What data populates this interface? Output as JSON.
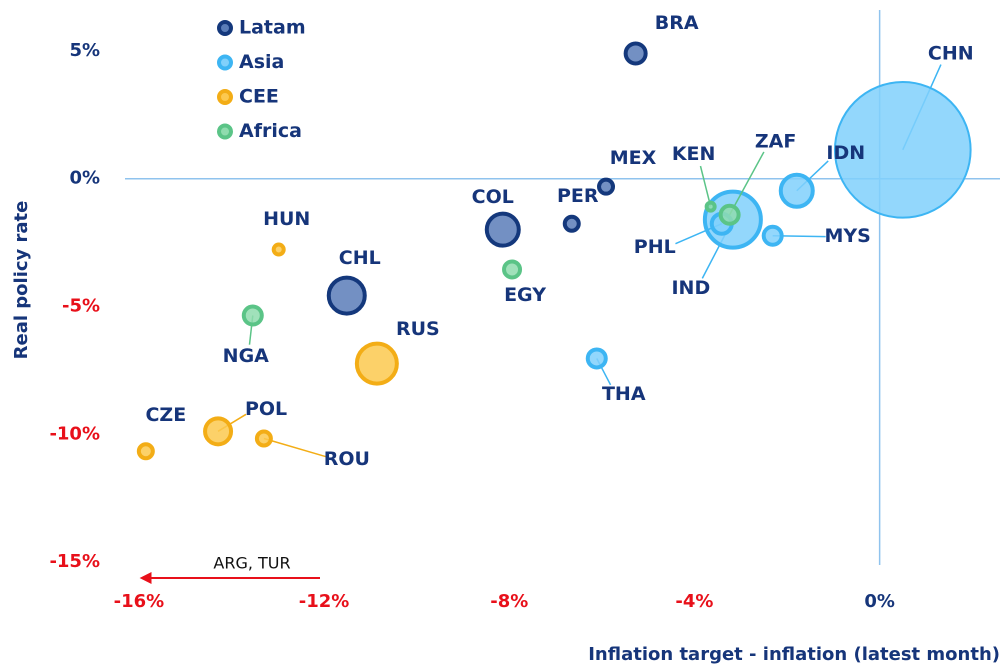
{
  "chart_data": {
    "type": "scatter",
    "xlabel": "Inflation target - inflation (latest month)",
    "ylabel": "Real policy rate",
    "xlim": [
      -16.3,
      2.6
    ],
    "ylim": [
      -15.5,
      6.6
    ],
    "xticks": [
      {
        "value": -16,
        "label": "-16%"
      },
      {
        "value": -12,
        "label": "-12%"
      },
      {
        "value": -8,
        "label": "-8%"
      },
      {
        "value": -4,
        "label": "-4%"
      },
      {
        "value": 0,
        "label": "0%"
      }
    ],
    "yticks": [
      {
        "value": 5,
        "label": "5%"
      },
      {
        "value": 0,
        "label": "0%"
      },
      {
        "value": -5,
        "label": "-5%"
      },
      {
        "value": -10,
        "label": "-10%"
      },
      {
        "value": -15,
        "label": "-15%"
      }
    ],
    "legend": "upper left",
    "annotation": {
      "text": "ARG, TUR",
      "color": "#e8101a"
    },
    "series": [
      {
        "name": "Latam",
        "color": "#14387c",
        "fill": "#5a7db8",
        "labels": [
          "BRA",
          "MEX",
          "PER",
          "COL",
          "CHL"
        ],
        "x": [
          -5.27,
          -5.91,
          -6.65,
          -8.14,
          -11.51
        ],
        "values": [
          4.9,
          -0.31,
          -1.76,
          -1.99,
          -4.57
        ],
        "sizes": [
          100,
          49,
          49,
          256,
          324
        ]
      },
      {
        "name": "Asia",
        "color": "#3db5f3",
        "fill": "#80d0fb",
        "labels": [
          "CHN",
          "IDN",
          "IND",
          "PHL",
          "MYS",
          "THA"
        ],
        "x": [
          0.5,
          -1.79,
          -3.17,
          -3.41,
          -2.31,
          -6.11
        ],
        "values": [
          1.13,
          -0.47,
          -1.6,
          -1.76,
          -2.23,
          -7.03
        ],
        "sizes": [
          4600,
          256,
          784,
          100,
          81,
          81
        ]
      },
      {
        "name": "CEE",
        "color": "#f3ad16",
        "fill": "#fcc94f",
        "labels": [
          "HUN",
          "RUS",
          "POL",
          "CZE",
          "ROU"
        ],
        "x": [
          -12.98,
          -10.86,
          -14.29,
          -15.85,
          -13.3
        ],
        "values": [
          -2.77,
          -7.23,
          -9.88,
          -10.66,
          -10.16
        ],
        "sizes": [
          25,
          400,
          169,
          49,
          49
        ]
      },
      {
        "name": "Africa",
        "color": "#5bc487",
        "fill": "#8fdcae",
        "labels": [
          "KEN",
          "ZAF",
          "EGY",
          "NGA"
        ],
        "x": [
          -3.65,
          -3.24,
          -7.94,
          -13.54
        ],
        "values": [
          -1.09,
          -1.41,
          -3.55,
          -5.35
        ],
        "sizes": [
          16,
          81,
          64,
          81
        ]
      }
    ]
  }
}
